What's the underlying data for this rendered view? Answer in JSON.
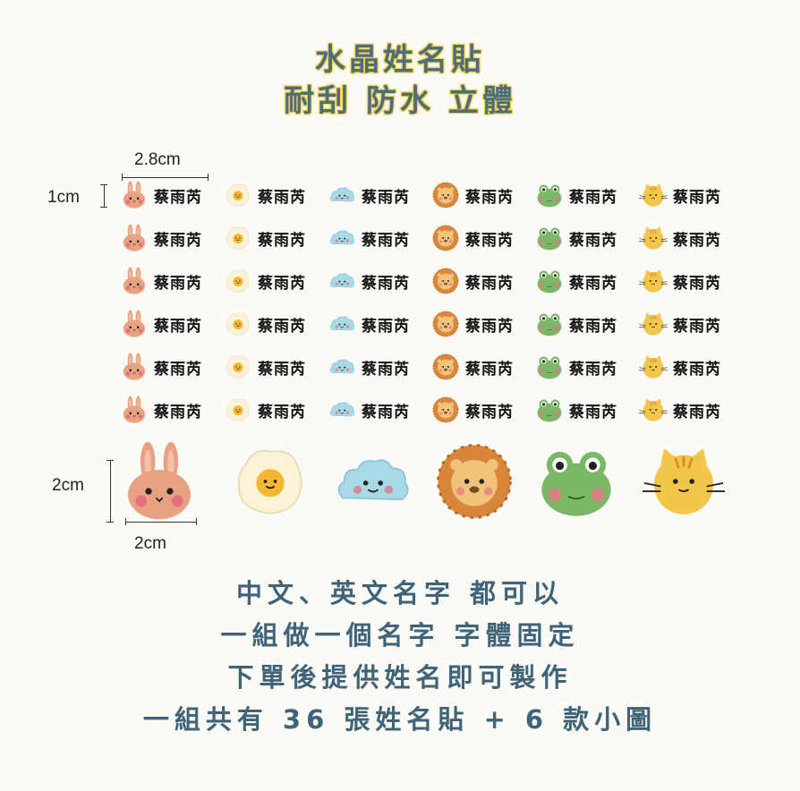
{
  "title": {
    "line1": "水晶姓名貼",
    "line2": "耐刮 防水 立體"
  },
  "dimensions": {
    "width_small": "2.8cm",
    "height_small": "1cm",
    "height_big": "2cm",
    "width_big": "2cm"
  },
  "sticker_name": "蔡雨芮",
  "icons": [
    "bunny-icon",
    "egg-icon",
    "cloud-icon",
    "lion-icon",
    "frog-icon",
    "tiger-icon"
  ],
  "description": {
    "line1": "中文、英文名字 都可以",
    "line2": "一組做一個名字 字體固定",
    "line3": "下單後提供姓名即可製作",
    "line4": "一組共有 36 張姓名貼 + 6 款小圖"
  },
  "colors": {
    "title": "#4a6d80",
    "title_outline": "#f7d24a",
    "text": "#3f6478"
  }
}
